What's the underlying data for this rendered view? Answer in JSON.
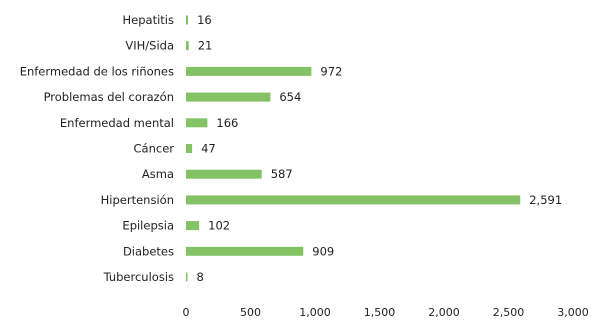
{
  "chart_data": {
    "type": "bar",
    "orientation": "horizontal",
    "categories": [
      "Hepatitis",
      "VIH/Sida",
      "Enfermedad de los riñones",
      "Problemas del corazón",
      "Enfermedad mental",
      "Cáncer",
      "Asma",
      "Hipertensión",
      "Epilepsia",
      "Diabetes",
      "Tuberculosis"
    ],
    "values": [
      16,
      21,
      972,
      654,
      166,
      47,
      587,
      2591,
      102,
      909,
      8
    ],
    "value_labels": [
      "16",
      "21",
      "972",
      "654",
      "166",
      "47",
      "587",
      "2,591",
      "102",
      "909",
      "8"
    ],
    "xlim": [
      0,
      3000
    ],
    "x_ticks": [
      0,
      500,
      1000,
      1500,
      2000,
      2500,
      3000
    ],
    "x_tick_labels": [
      "0",
      "500",
      "1,000",
      "1,500",
      "2,000",
      "2,500",
      "3,000"
    ],
    "bar_color": "#84c365",
    "grid": false,
    "legend": "none"
  }
}
